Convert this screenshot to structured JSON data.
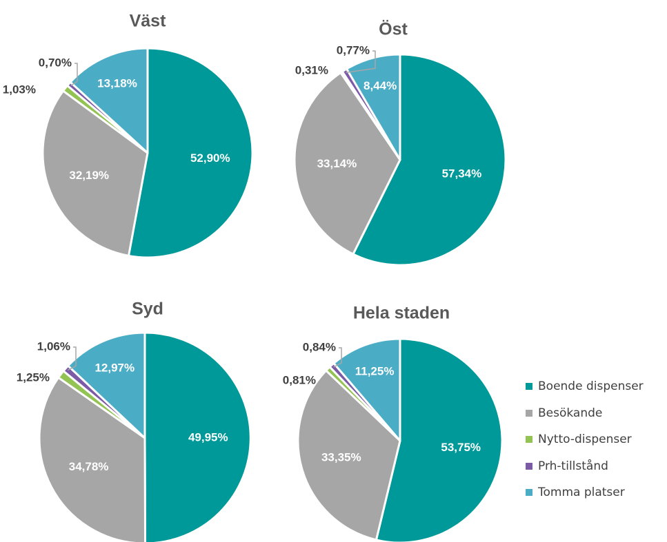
{
  "colors": {
    "Boende dispenser": "#009999",
    "Besökande": "#A6A6A6",
    "Nytto-dispenser": "#92C353",
    "Prh-tillstånd": "#7B5BA6",
    "Tomma platser": "#4BACC6"
  },
  "legend": [
    "Boende dispenser",
    "Besökande",
    "Nytto-dispenser",
    "Prh-tillstånd",
    "Tomma platser"
  ],
  "chart_data": [
    {
      "type": "pie",
      "title": "Väst",
      "categories": [
        "Boende dispenser",
        "Besökande",
        "Nytto-dispenser",
        "Prh-tillstånd",
        "Tomma platser"
      ],
      "values": [
        52.9,
        32.19,
        1.03,
        0.7,
        13.18
      ],
      "labels": [
        "52,90%",
        "32,19%",
        "1,03%",
        "0,70%",
        "13,18%"
      ]
    },
    {
      "type": "pie",
      "title": "Öst",
      "categories": [
        "Boende dispenser",
        "Besökande",
        "Nytto-dispenser",
        "Prh-tillstånd",
        "Tomma platser"
      ],
      "values": [
        57.34,
        33.14,
        0.31,
        0.77,
        8.44
      ],
      "labels": [
        "57,34%",
        "33,14%",
        "0,31%",
        "0,77%",
        "8,44%"
      ]
    },
    {
      "type": "pie",
      "title": "Syd",
      "categories": [
        "Boende dispenser",
        "Besökande",
        "Nytto-dispenser",
        "Prh-tillstånd",
        "Tomma platser"
      ],
      "values": [
        49.95,
        34.78,
        1.25,
        1.06,
        12.97
      ],
      "labels": [
        "49,95%",
        "34,78%",
        "1,25%",
        "1,06%",
        "12,97%"
      ]
    },
    {
      "type": "pie",
      "title": "Hela staden",
      "categories": [
        "Boende dispenser",
        "Besökande",
        "Nytto-dispenser",
        "Prh-tillstånd",
        "Tomma platser"
      ],
      "values": [
        53.75,
        33.35,
        0.81,
        0.84,
        11.25
      ],
      "labels": [
        "53,75%",
        "33,35%",
        "0,81%",
        "0,84%",
        "11,25%"
      ]
    }
  ]
}
